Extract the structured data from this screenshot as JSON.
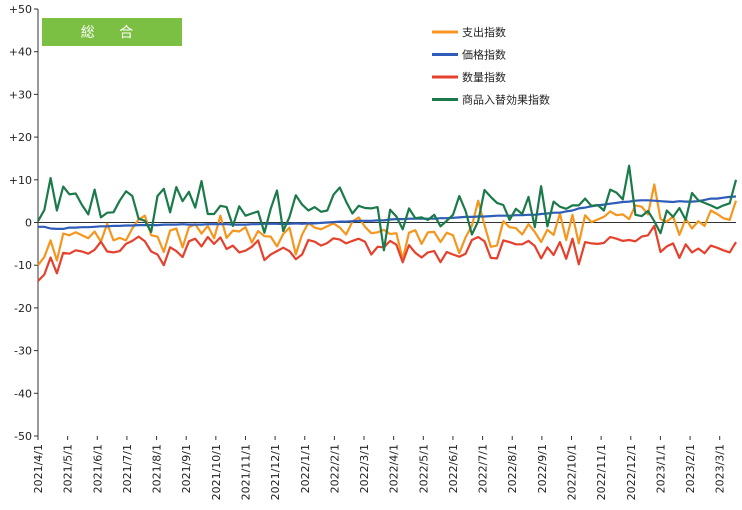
{
  "chart_data": {
    "type": "line",
    "badge": "総 合",
    "ylim": [
      -50,
      50
    ],
    "yticks": [
      "+50",
      "+40",
      "+30",
      "+20",
      "+10",
      "0",
      "-10",
      "-20",
      "-30",
      "-40",
      "-50"
    ],
    "x_labels": [
      "2021/4/1",
      "2021/5/1",
      "2021/6/1",
      "2021/7/1",
      "2021/8/1",
      "2021/9/1",
      "2021/10/1",
      "2021/11/1",
      "2021/12/1",
      "2022/1/1",
      "2022/2/1",
      "2022/3/1",
      "2022/4/1",
      "2022/5/1",
      "2022/6/1",
      "2022/7/1",
      "2022/8/1",
      "2022/9/1",
      "2022/10/1",
      "2022/11/1",
      "2022/12/1",
      "2023/1/1",
      "2023/2/1",
      "2023/3/1"
    ],
    "legend_position": "top-right",
    "grid": false,
    "series": [
      {
        "name": "支出指数",
        "color": "#F5961E",
        "values": [
          -10.0,
          -8.1,
          -4.2,
          -8.9,
          -2.6,
          -3.0,
          -2.3,
          -3.0,
          -3.7,
          -2.1,
          -4.5,
          -0.3,
          -4.2,
          -3.6,
          -4.2,
          -1.4,
          0.7,
          1.6,
          -3.0,
          -3.3,
          -6.9,
          -1.9,
          -1.4,
          -5.8,
          -1.1,
          -0.4,
          -2.6,
          -0.8,
          -3.7,
          1.6,
          -3.6,
          -1.9,
          -2.1,
          -1.1,
          -4.7,
          -2.0,
          -3.2,
          -3.3,
          -5.6,
          -2.7,
          -1.2,
          -7.5,
          -2.8,
          -0.1,
          -1.2,
          -1.6,
          -0.9,
          -0.2,
          -1.2,
          -2.8,
          0.2,
          1.2,
          -1.0,
          -2.5,
          -2.3,
          -1.7,
          -2.7,
          -2.5,
          -8.6,
          -2.4,
          -1.8,
          -5.0,
          -2.3,
          -2.2,
          -4.6,
          -2.4,
          -3.0,
          -7.2,
          -3.5,
          -0.8,
          5.1,
          -0.6,
          -5.7,
          -5.4,
          0.3,
          -1.1,
          -1.3,
          -2.8,
          -0.4,
          -2.2,
          -4.6,
          -1.7,
          -2.9,
          2.1,
          -4.1,
          1.8,
          -4.9,
          1.7,
          0.1,
          0.7,
          1.3,
          2.6,
          1.7,
          1.9,
          0.8,
          4.0,
          3.7,
          1.9,
          8.9,
          0.8,
          0.2,
          1.4,
          -2.9,
          0.9,
          -1.4,
          0.3,
          -0.8,
          2.8,
          2.0,
          1.0,
          0.6,
          5.1
        ]
      },
      {
        "name": "価格指数",
        "color": "#2E5CB8",
        "values": [
          -1.0,
          -1.0,
          -1.4,
          -1.5,
          -1.5,
          -1.2,
          -1.2,
          -1.1,
          -1.1,
          -1.0,
          -0.9,
          -0.9,
          -0.8,
          -0.8,
          -0.7,
          -0.7,
          -0.6,
          -0.6,
          -0.6,
          -0.6,
          -0.5,
          -0.5,
          -0.5,
          -0.4,
          -0.5,
          -0.5,
          -0.5,
          -0.4,
          -0.4,
          -0.4,
          -0.4,
          -0.5,
          -0.5,
          -0.5,
          -0.4,
          -0.4,
          -0.3,
          -0.3,
          -0.3,
          -0.4,
          -0.3,
          -0.2,
          -0.3,
          -0.2,
          -0.2,
          -0.1,
          0.0,
          0.1,
          0.2,
          0.2,
          0.3,
          0.4,
          0.4,
          0.4,
          0.5,
          0.5,
          0.7,
          0.8,
          0.8,
          0.9,
          0.9,
          0.9,
          0.9,
          0.9,
          1.0,
          1.0,
          1.1,
          1.2,
          1.3,
          1.3,
          1.4,
          1.4,
          1.5,
          1.6,
          1.6,
          1.6,
          1.7,
          1.7,
          1.8,
          1.8,
          2.0,
          2.1,
          2.3,
          2.3,
          2.6,
          2.8,
          3.3,
          3.5,
          3.8,
          4.0,
          4.2,
          4.4,
          4.6,
          4.8,
          4.9,
          5.1,
          5.2,
          5.2,
          5.1,
          5.0,
          4.9,
          4.8,
          5.0,
          4.9,
          4.9,
          5.0,
          5.3,
          5.6,
          5.6,
          5.8,
          6.0,
          6.1
        ]
      },
      {
        "name": "数量指数",
        "color": "#E5412D",
        "values": [
          -13.7,
          -12.2,
          -8.2,
          -11.9,
          -7.1,
          -7.3,
          -6.5,
          -6.8,
          -7.3,
          -6.4,
          -4.5,
          -6.8,
          -7.0,
          -6.7,
          -5.0,
          -4.3,
          -3.3,
          -4.4,
          -6.8,
          -7.5,
          -10.0,
          -5.8,
          -6.7,
          -8.1,
          -4.4,
          -3.8,
          -5.6,
          -3.4,
          -5.0,
          -3.5,
          -6.2,
          -5.4,
          -7.0,
          -6.6,
          -5.7,
          -4.2,
          -8.8,
          -7.5,
          -6.7,
          -5.9,
          -6.7,
          -8.6,
          -7.5,
          -4.1,
          -4.5,
          -5.4,
          -4.8,
          -3.7,
          -4.0,
          -4.9,
          -4.3,
          -3.8,
          -4.5,
          -7.5,
          -5.7,
          -5.8,
          -4.3,
          -5.2,
          -9.3,
          -5.3,
          -7.1,
          -8.2,
          -7.0,
          -6.7,
          -9.3,
          -6.9,
          -7.5,
          -8.0,
          -7.3,
          -4.1,
          -3.4,
          -4.4,
          -8.3,
          -8.4,
          -4.2,
          -4.6,
          -5.1,
          -5.1,
          -4.3,
          -5.5,
          -8.4,
          -5.8,
          -7.6,
          -4.6,
          -8.5,
          -3.8,
          -9.8,
          -4.6,
          -4.9,
          -5.0,
          -4.8,
          -3.4,
          -3.8,
          -4.3,
          -4.1,
          -4.4,
          -3.3,
          -3.0,
          -0.8,
          -6.9,
          -5.6,
          -4.9,
          -8.3,
          -5.1,
          -7.0,
          -6.1,
          -7.2,
          -5.4,
          -5.9,
          -6.5,
          -7.0,
          -4.6
        ]
      },
      {
        "name": "商品入替効果指数",
        "color": "#1B7A4A",
        "values": [
          0.3,
          2.9,
          10.4,
          2.8,
          8.4,
          6.6,
          6.8,
          4.1,
          1.9,
          7.7,
          1.2,
          2.3,
          2.4,
          5.1,
          7.3,
          6.2,
          0.9,
          0.4,
          -2.2,
          6.2,
          7.9,
          2.4,
          8.3,
          5.0,
          7.2,
          3.5,
          9.7,
          2.0,
          2.0,
          3.9,
          3.6,
          -0.8,
          3.8,
          1.6,
          2.1,
          2.6,
          -2.4,
          3.2,
          7.5,
          -2.0,
          1.3,
          6.4,
          4.2,
          2.8,
          3.6,
          2.5,
          2.8,
          6.5,
          8.2,
          4.9,
          2.1,
          3.9,
          3.4,
          3.3,
          3.6,
          -6.5,
          3.0,
          1.4,
          -1.6,
          3.3,
          1.0,
          1.2,
          0.6,
          1.8,
          -0.9,
          0.4,
          1.8,
          6.2,
          2.7,
          -2.8,
          0.3,
          7.6,
          6.0,
          4.6,
          4.1,
          0.6,
          3.2,
          2.0,
          6.0,
          -1.1,
          8.5,
          -0.9,
          4.9,
          3.7,
          3.2,
          4.0,
          4.0,
          5.6,
          3.9,
          4.1,
          2.8,
          7.7,
          7.0,
          5.4,
          13.3,
          1.8,
          1.5,
          2.7,
          0.3,
          -2.5,
          2.8,
          1.3,
          3.4,
          0.6,
          6.9,
          5.2,
          4.6,
          4.0,
          3.3,
          4.0,
          4.5,
          10.0
        ]
      }
    ]
  }
}
